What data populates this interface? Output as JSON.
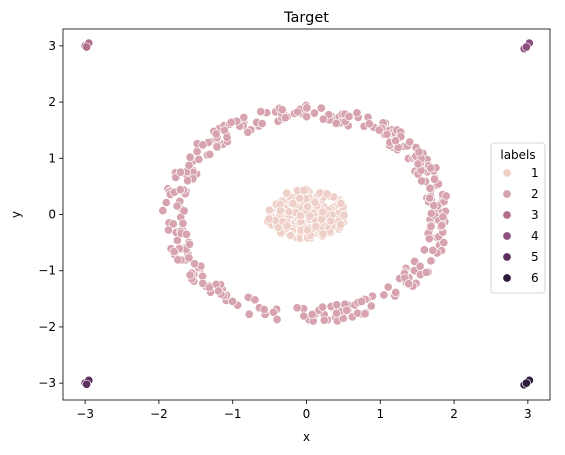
{
  "chart_data": {
    "type": "scatter",
    "title": "Target",
    "xlabel": "x",
    "ylabel": "y",
    "xlim": [
      -3.3,
      3.3
    ],
    "ylim": [
      -3.3,
      3.3
    ],
    "xticks": [
      -3,
      -2,
      -1,
      0,
      1,
      2,
      3
    ],
    "yticks": [
      -3,
      -2,
      -1,
      0,
      1,
      2,
      3
    ],
    "grid": false,
    "legend": {
      "title": "labels",
      "placement": "right"
    },
    "series": [
      {
        "name": "1",
        "color": "#efd0c9",
        "description_points": {
          "shape": "filled ellipse",
          "center": [
            0,
            0
          ],
          "rx": 0.55,
          "ry": 0.45,
          "count": 260
        }
      },
      {
        "name": "2",
        "color": "#d6a3ae",
        "description_points": {
          "shape": "ring",
          "center": [
            0,
            0
          ],
          "radius": 1.8,
          "width": 0.3,
          "count": 330
        }
      },
      {
        "name": "3",
        "color": "#b0708b",
        "points": [
          [
            -3.0,
            3.0
          ],
          [
            -2.95,
            3.05
          ],
          [
            -2.98,
            2.98
          ]
        ]
      },
      {
        "name": "4",
        "color": "#8c4f7f",
        "points": [
          [
            2.95,
            2.95
          ],
          [
            3.02,
            3.05
          ],
          [
            2.98,
            2.98
          ]
        ]
      },
      {
        "name": "5",
        "color": "#5c2f5e",
        "points": [
          [
            -3.0,
            -3.0
          ],
          [
            -2.95,
            -2.95
          ],
          [
            -2.98,
            -3.02
          ]
        ]
      },
      {
        "name": "6",
        "color": "#2e1a3d",
        "points": [
          [
            2.95,
            -3.03
          ],
          [
            3.02,
            -2.95
          ],
          [
            2.98,
            -3.0
          ]
        ]
      }
    ]
  }
}
